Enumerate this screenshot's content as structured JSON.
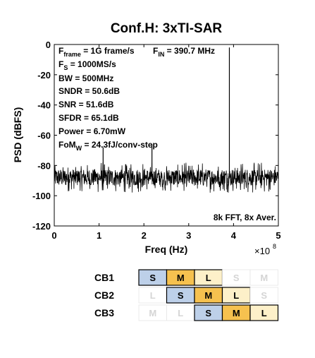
{
  "chart_data": {
    "type": "line",
    "title": "Conf.H: 3xTI-SAR",
    "xlabel": "Freq (Hz)",
    "ylabel": "PSD (dBFS)",
    "x_multiplier_label": "×10",
    "x_multiplier_exp": "8",
    "xlim": [
      0,
      5
    ],
    "ylim": [
      -120,
      0
    ],
    "xticks": [
      "0",
      "1",
      "2",
      "3",
      "4",
      "5"
    ],
    "yticks": [
      "0",
      "-20",
      "-40",
      "-60",
      "-80",
      "-100",
      "-120"
    ],
    "grid": false,
    "noise_floor_dBFS": -88,
    "noise_band_dBFS": [
      -98,
      -78
    ],
    "series": [
      {
        "peaks": [
          {
            "x": 3.907,
            "y": -2
          },
          {
            "x": 1.09,
            "y": -68
          },
          {
            "x": 2.18,
            "y": -66
          }
        ]
      }
    ],
    "params": [
      {
        "main": "F",
        "sub": "frame",
        "rest": " = 1G frame/s"
      },
      {
        "main": "F",
        "sub": "S",
        "rest": " = 1000MS/s"
      },
      {
        "main": "BW = 500MHz",
        "sub": "",
        "rest": ""
      },
      {
        "main": "SNDR = 50.6dB",
        "sub": "",
        "rest": ""
      },
      {
        "main": "SNR = 51.6dB",
        "sub": "",
        "rest": ""
      },
      {
        "main": "SFDR = 65.1dB",
        "sub": "",
        "rest": ""
      },
      {
        "main": "Power = 6.70mW",
        "sub": "",
        "rest": ""
      },
      {
        "main": "FoM",
        "sub": "W",
        "rest": " = 24.3fJ/conv-step"
      }
    ],
    "fin_label": {
      "main": "F",
      "sub": "IN",
      "rest": " = 390.7 MHz"
    },
    "fft_label": "8k FFT, 8x Aver."
  },
  "cb_table": {
    "rows": [
      {
        "label": "CB1",
        "cells": [
          {
            "text": "S",
            "active": true,
            "color": "#bdd0e9"
          },
          {
            "text": "M",
            "active": true,
            "color": "#f6c14f"
          },
          {
            "text": "L",
            "active": true,
            "color": "#fdf0c9"
          },
          {
            "text": "S",
            "active": false,
            "color": "#ffffff"
          },
          {
            "text": "M",
            "active": false,
            "color": "#ffffff"
          }
        ]
      },
      {
        "label": "CB2",
        "cells": [
          {
            "text": "L",
            "active": false,
            "color": "#ffffff"
          },
          {
            "text": "S",
            "active": true,
            "color": "#bdd0e9"
          },
          {
            "text": "M",
            "active": true,
            "color": "#f6c14f"
          },
          {
            "text": "L",
            "active": true,
            "color": "#fdf0c9"
          },
          {
            "text": "S",
            "active": false,
            "color": "#ffffff"
          }
        ]
      },
      {
        "label": "CB3",
        "cells": [
          {
            "text": "M",
            "active": false,
            "color": "#ffffff"
          },
          {
            "text": "L",
            "active": false,
            "color": "#ffffff"
          },
          {
            "text": "S",
            "active": true,
            "color": "#bdd0e9"
          },
          {
            "text": "M",
            "active": true,
            "color": "#f6c14f"
          },
          {
            "text": "L",
            "active": true,
            "color": "#fdf0c9"
          }
        ]
      }
    ]
  }
}
